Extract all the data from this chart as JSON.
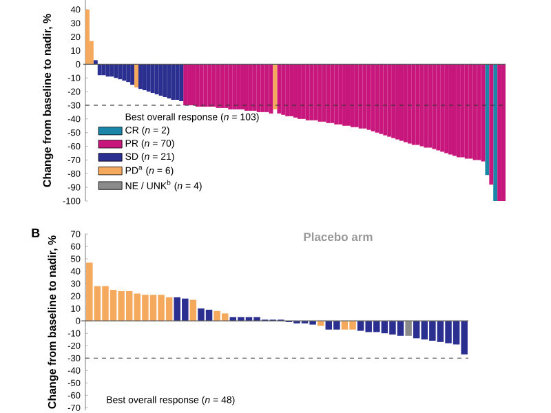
{
  "chart_data": [
    {
      "type": "bar",
      "ylabel": "Change from baseline to nadir, %",
      "legend_title": "Best overall response (*n* = 103)",
      "legend": "bottom left",
      "categories": [
        null,
        null,
        null,
        null,
        null,
        null,
        null,
        null,
        null,
        null,
        null,
        null,
        null,
        null,
        null,
        null,
        null,
        null,
        null,
        null,
        null,
        null,
        null,
        null,
        null,
        null,
        null,
        null,
        null,
        null,
        null,
        null,
        null,
        null,
        null,
        null,
        null,
        null,
        null,
        null,
        null,
        null,
        null,
        null,
        null,
        null,
        null,
        null,
        null,
        null,
        null,
        null,
        null,
        null,
        null,
        null,
        null,
        null,
        null,
        null,
        null,
        null,
        null,
        null,
        null,
        null,
        null,
        null,
        null,
        null,
        null,
        null,
        null,
        null,
        null,
        null,
        null,
        null,
        null,
        null,
        null,
        null,
        null,
        null,
        null,
        null,
        null,
        null,
        null,
        null,
        null,
        null,
        null,
        null,
        null,
        null,
        null,
        null,
        null,
        null,
        null,
        null,
        null
      ],
      "ylim": [
        -100,
        47
      ],
      "yticks": [
        -100,
        -90,
        -80,
        -70,
        -60,
        -50,
        -40,
        -30,
        -20,
        -10,
        0,
        10,
        20,
        30,
        40
      ],
      "ref_lines": [
        {
          "axis": "y",
          "value": -30,
          "color": "#333333",
          "line_style": "dashed"
        }
      ],
      "series": [
        {
          "name": "CR (*n* = 2)",
          "color": "#1a87a8",
          "values": [
            null,
            null,
            null,
            null,
            null,
            null,
            null,
            null,
            null,
            null,
            null,
            null,
            null,
            null,
            null,
            null,
            null,
            null,
            null,
            null,
            null,
            null,
            null,
            null,
            null,
            null,
            null,
            null,
            null,
            null,
            null,
            null,
            null,
            null,
            null,
            null,
            null,
            null,
            null,
            null,
            null,
            null,
            null,
            null,
            null,
            null,
            null,
            null,
            null,
            null,
            null,
            null,
            null,
            null,
            null,
            null,
            null,
            null,
            null,
            null,
            null,
            null,
            null,
            null,
            null,
            null,
            null,
            null,
            null,
            null,
            null,
            null,
            null,
            null,
            null,
            null,
            null,
            null,
            null,
            null,
            null,
            null,
            null,
            null,
            null,
            null,
            null,
            null,
            null,
            null,
            null,
            null,
            null,
            null,
            null,
            null,
            null,
            null,
            -81,
            null,
            -100,
            null,
            null
          ]
        },
        {
          "name": "PR (*n* = 70)",
          "color": "#c8177c",
          "values": [
            null,
            null,
            null,
            null,
            null,
            null,
            null,
            null,
            null,
            null,
            null,
            null,
            null,
            null,
            null,
            null,
            null,
            null,
            null,
            null,
            null,
            null,
            null,
            null,
            -30,
            -30,
            -30,
            -31,
            -31,
            -31,
            -31,
            -31,
            -32,
            -32,
            -32,
            -33,
            -33,
            -33,
            -33,
            -34,
            -34,
            -34,
            -35,
            -35,
            -35,
            -36,
            null,
            -36,
            -37,
            -38,
            -38,
            -39,
            -40,
            -40,
            -41,
            -41,
            -41,
            -42,
            -42,
            -43,
            -43,
            -44,
            -44,
            -45,
            -45,
            -46,
            -46,
            -47,
            -47,
            -48,
            -49,
            -50,
            -51,
            -52,
            -53,
            -54,
            -55,
            -56,
            -57,
            -58,
            -59,
            -59,
            -60,
            -61,
            -61,
            -62,
            -63,
            -64,
            -65,
            -66,
            -67,
            -68,
            -68,
            -69,
            -69,
            -70,
            -70,
            -71,
            null,
            -88,
            null,
            -100,
            -100
          ]
        },
        {
          "name": "SD (*n* = 21)",
          "color": "#2b2f8f",
          "values": [
            null,
            null,
            3,
            -8,
            -8,
            -9,
            -9,
            -10,
            -11,
            -12,
            -13,
            -15,
            null,
            -18,
            -19,
            -20,
            -21,
            -22,
            -23,
            -24,
            -25,
            -26,
            -26,
            -27,
            null,
            null,
            null,
            null,
            null,
            null,
            null,
            null,
            null,
            null,
            null,
            null,
            null,
            null,
            null,
            null,
            null,
            null,
            null,
            null,
            null,
            null,
            null,
            null,
            null,
            null,
            null,
            null,
            null,
            null,
            null,
            null,
            null,
            null,
            null,
            null,
            null,
            null,
            null,
            null,
            null,
            null,
            null,
            null,
            null,
            null,
            null,
            null,
            null,
            null,
            null,
            null,
            null,
            null,
            null,
            null,
            null,
            null,
            null,
            null,
            null,
            null,
            null,
            null,
            null,
            null,
            null,
            null,
            null,
            null,
            null,
            null,
            null,
            null,
            null,
            null,
            null,
            null,
            null
          ]
        },
        {
          "name": "PD$^{a}$ (*n* = 6)",
          "color": "#f5a95c",
          "values": [
            40,
            17,
            null,
            null,
            null,
            null,
            null,
            null,
            null,
            null,
            null,
            null,
            -17,
            null,
            null,
            null,
            null,
            null,
            null,
            null,
            null,
            null,
            null,
            null,
            null,
            null,
            null,
            null,
            null,
            null,
            null,
            null,
            null,
            null,
            null,
            null,
            null,
            null,
            null,
            null,
            null,
            null,
            null,
            null,
            null,
            null,
            -33,
            null,
            null,
            null,
            null,
            null,
            null,
            null,
            null,
            null,
            null,
            null,
            null,
            null,
            null,
            null,
            null,
            null,
            null,
            null,
            null,
            null,
            null,
            null,
            null,
            null,
            null,
            null,
            null,
            null,
            null,
            null,
            null,
            null,
            null,
            null,
            null,
            null,
            null,
            null,
            null,
            null,
            null,
            null,
            null,
            null,
            null,
            null,
            null,
            null,
            null,
            null,
            null,
            null,
            null,
            null,
            null
          ]
        },
        {
          "name": "NE / UNK$^{b}$ (*n* = 4)",
          "color": "#8a8a8a",
          "values": [
            null,
            null,
            null,
            null,
            null,
            null,
            null,
            null,
            null,
            null,
            null,
            null,
            null,
            null,
            null,
            null,
            null,
            null,
            null,
            null,
            null,
            null,
            null,
            null,
            null,
            null,
            null,
            null,
            null,
            null,
            null,
            null,
            null,
            null,
            null,
            null,
            null,
            null,
            null,
            null,
            null,
            null,
            null,
            null,
            null,
            null,
            null,
            null,
            null,
            null,
            null,
            null,
            null,
            null,
            null,
            null,
            null,
            null,
            null,
            null,
            null,
            null,
            null,
            null,
            null,
            null,
            null,
            null,
            null,
            null,
            null,
            null,
            null,
            null,
            null,
            null,
            null,
            null,
            null,
            null,
            null,
            null,
            null,
            null,
            null,
            null,
            null,
            null,
            null,
            null,
            null,
            null,
            null,
            null,
            null,
            null,
            null,
            null,
            null,
            null,
            null,
            null,
            null
          ]
        }
      ]
    },
    {
      "type": "bar",
      "title": "Placebo arm",
      "ylabel": "Change from baseline to nadir, %",
      "annotations": [
        "B",
        "Best overall response (*n* = 48)"
      ],
      "categories": [
        null,
        null,
        null,
        null,
        null,
        null,
        null,
        null,
        null,
        null,
        null,
        null,
        null,
        null,
        null,
        null,
        null,
        null,
        null,
        null,
        null,
        null,
        null,
        null,
        null,
        null,
        null,
        null,
        null,
        null,
        null,
        null,
        null,
        null,
        null,
        null,
        null,
        null,
        null,
        null,
        null,
        null,
        null,
        null,
        null,
        null,
        null,
        null
      ],
      "ylim": [
        -72,
        70
      ],
      "yticks": [
        -70,
        -60,
        -50,
        -40,
        -30,
        -20,
        -10,
        0,
        10,
        20,
        30,
        40,
        50,
        60,
        70
      ],
      "ref_lines": [
        {
          "axis": "y",
          "value": -30,
          "color": "#333333",
          "line_style": "dashed"
        }
      ],
      "values": [
        47,
        28,
        28,
        25,
        24,
        24,
        22,
        21,
        21,
        21,
        19,
        19,
        18,
        17,
        10,
        9,
        8,
        6,
        3,
        3,
        3,
        3,
        1,
        1,
        1,
        -1,
        -2,
        -2,
        -3,
        -4,
        -7,
        -7,
        -7,
        -7,
        -8,
        -9,
        -9,
        -10,
        -11,
        -12,
        -12,
        -14,
        -15,
        -16,
        -17,
        -18,
        -19,
        -27
      ],
      "colors": [
        "#f5a95c",
        "#f5a95c",
        "#f5a95c",
        "#f5a95c",
        "#f5a95c",
        "#f5a95c",
        "#f5a95c",
        "#f5a95c",
        "#f5a95c",
        "#f5a95c",
        "#f5a95c",
        "#2b2f8f",
        "#2b2f8f",
        "#f5a95c",
        "#2b2f8f",
        "#2b2f8f",
        "#f5a95c",
        "#f5a95c",
        "#2b2f8f",
        "#2b2f8f",
        "#2b2f8f",
        "#2b2f8f",
        "#2b2f8f",
        "#2b2f8f",
        "#2b2f8f",
        "#2b2f8f",
        "#2b2f8f",
        "#2b2f8f",
        "#2b2f8f",
        "#f5a95c",
        "#2b2f8f",
        "#2b2f8f",
        "#f5a95c",
        "#f5a95c",
        "#2b2f8f",
        "#2b2f8f",
        "#2b2f8f",
        "#2b2f8f",
        "#2b2f8f",
        "#2b2f8f",
        "#8a8a8a",
        "#2b2f8f",
        "#2b2f8f",
        "#2b2f8f",
        "#2b2f8f",
        "#2b2f8f",
        "#2b2f8f",
        "#2b2f8f"
      ]
    }
  ]
}
